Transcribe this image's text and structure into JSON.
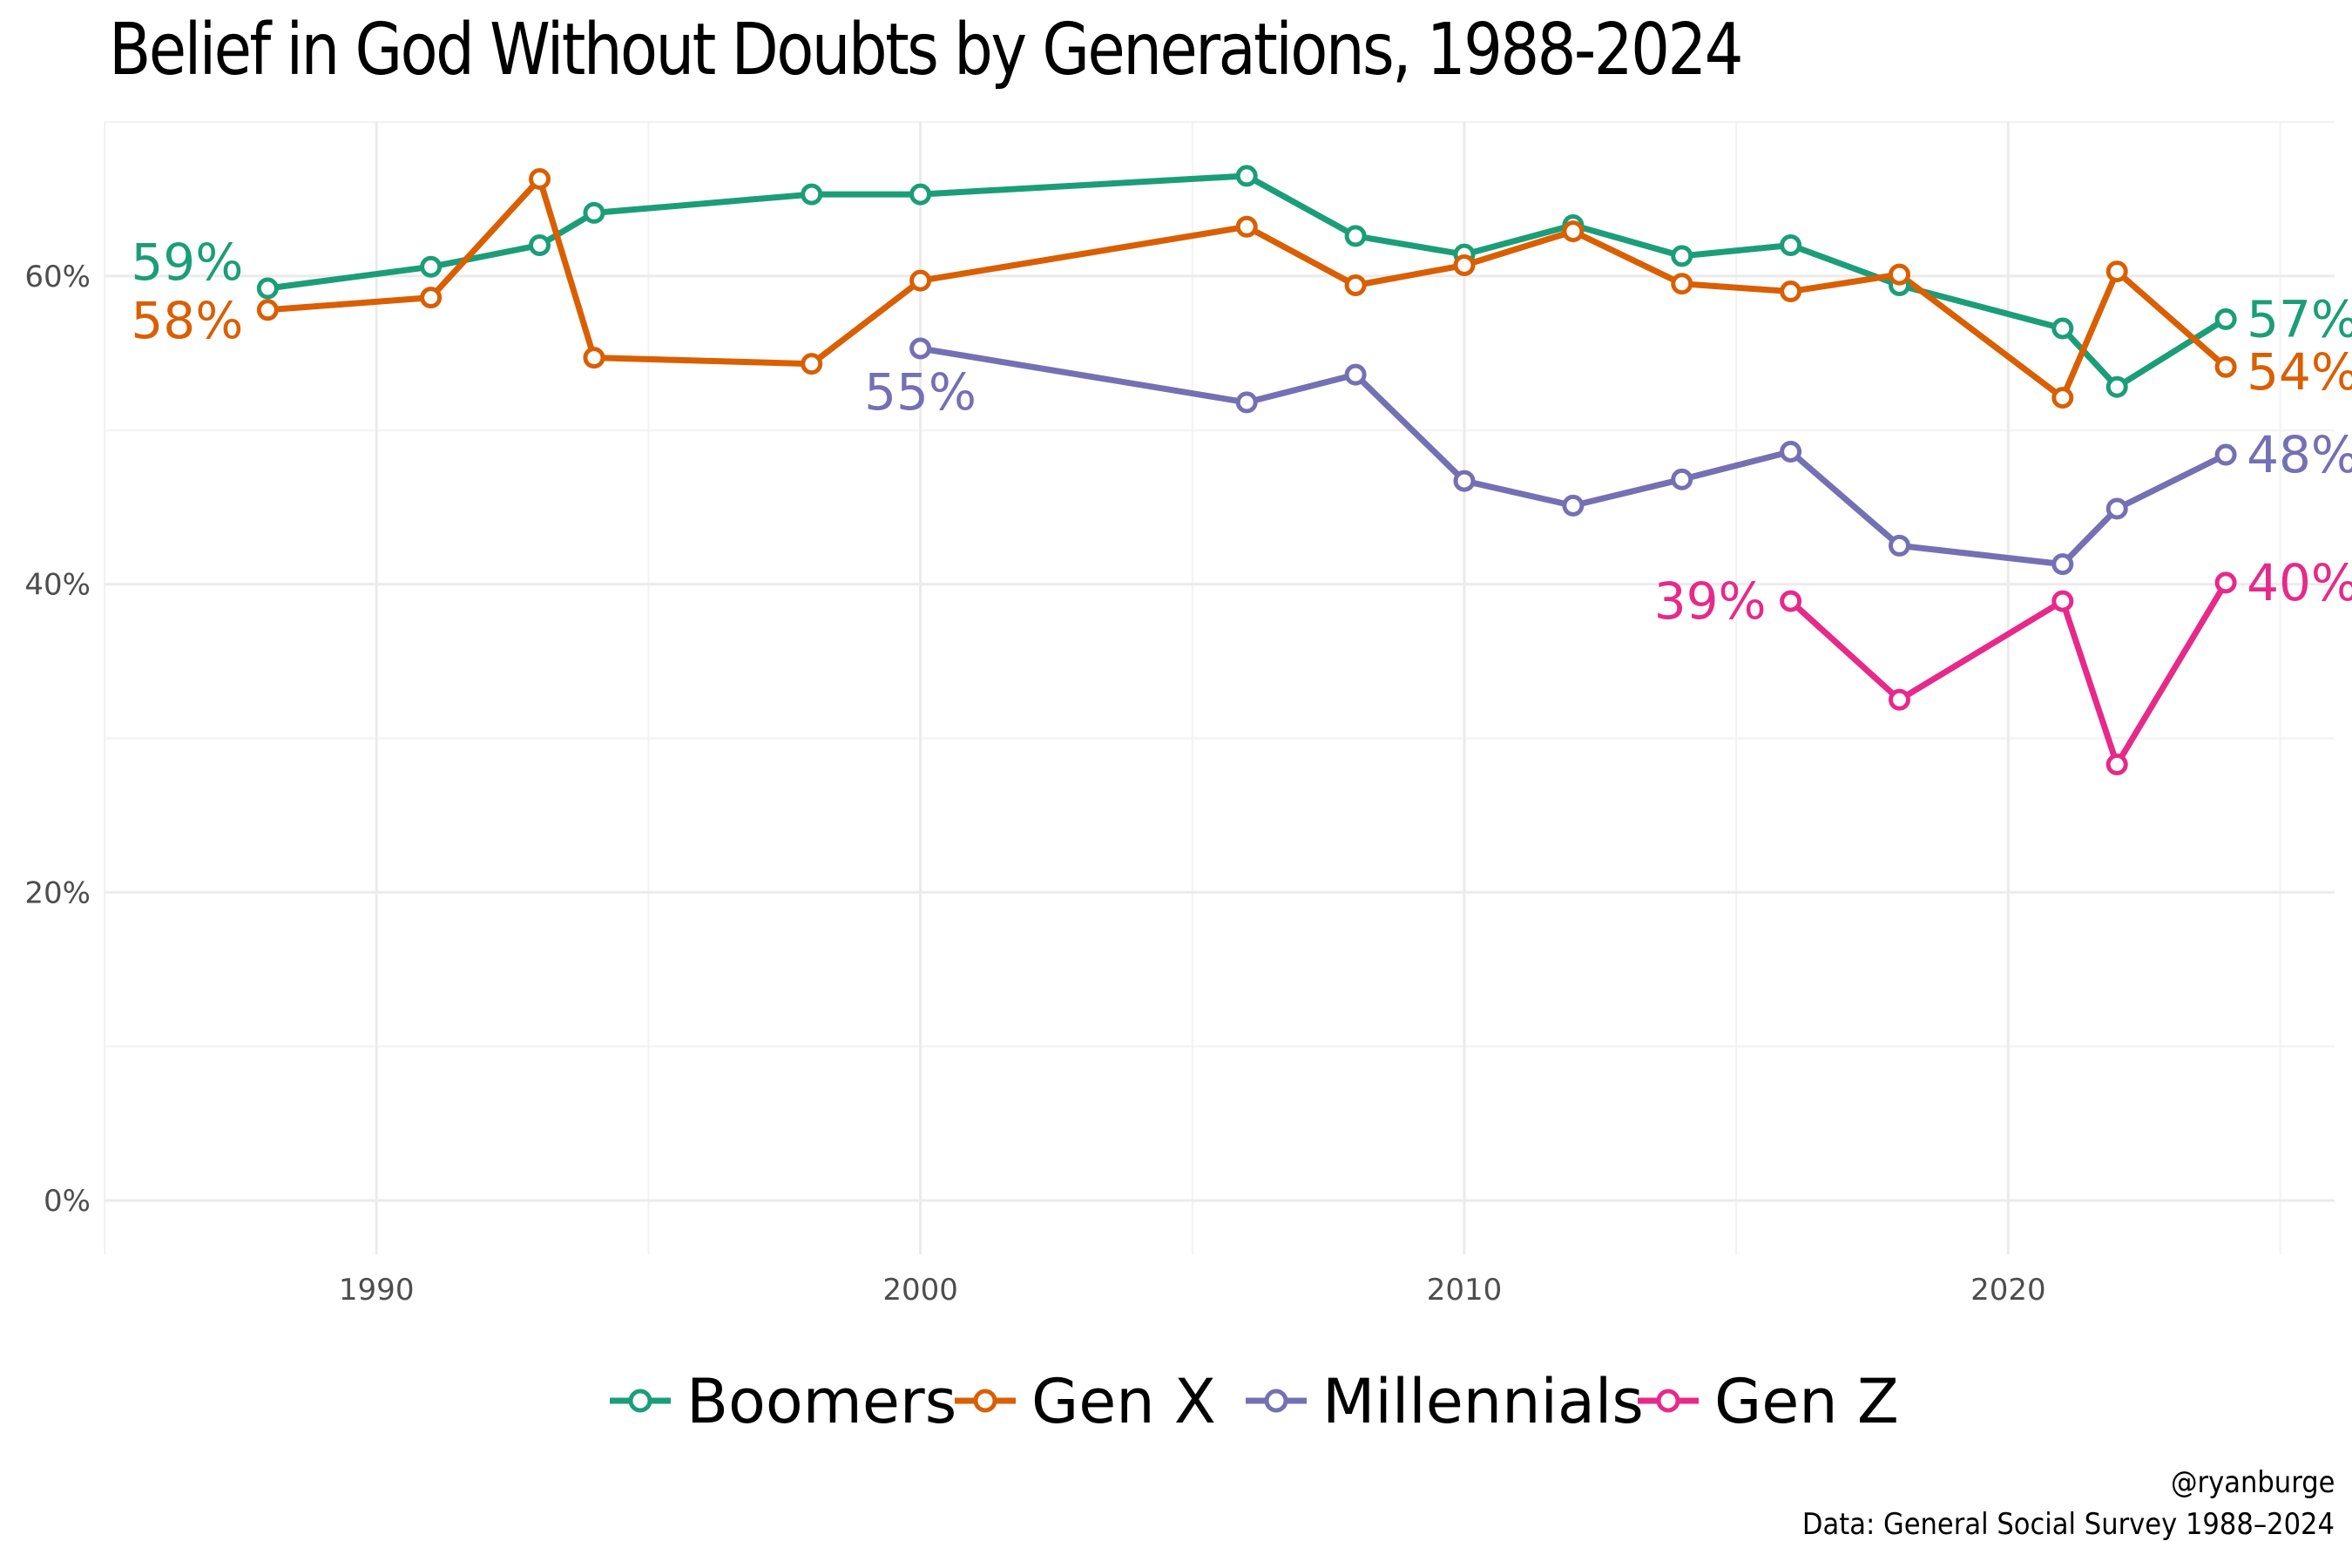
{
  "chart_data": {
    "type": "line",
    "title": "Belief in God Without Doubts by Generations, 1988-2024",
    "xlabel": "",
    "ylabel": "",
    "xlim": [
      1985,
      2026
    ],
    "ylim": [
      -3.5,
      70
    ],
    "x_ticks": [
      1990,
      2000,
      2010,
      2020
    ],
    "x_tick_labels": [
      "1990",
      "2000",
      "2010",
      "2020"
    ],
    "y_ticks": [
      0,
      20,
      40,
      60
    ],
    "y_tick_labels": [
      "0%",
      "20%",
      "40%",
      "60%"
    ],
    "grid": true,
    "legend_position": "bottom",
    "series": [
      {
        "name": "Boomers",
        "color": "#1b9e77",
        "x": [
          1988,
          1991,
          1993,
          1994,
          1998,
          2000,
          2006,
          2008,
          2010,
          2012,
          2014,
          2016,
          2018,
          2021,
          2022,
          2024
        ],
        "values": [
          59.2,
          60.6,
          62.0,
          64.1,
          65.3,
          65.3,
          66.5,
          62.6,
          61.4,
          63.3,
          61.3,
          62.0,
          59.4,
          56.6,
          52.8,
          57.2
        ]
      },
      {
        "name": "Gen X",
        "color": "#d95f02",
        "x": [
          1988,
          1991,
          1993,
          1994,
          1998,
          2000,
          2006,
          2008,
          2010,
          2012,
          2014,
          2016,
          2018,
          2021,
          2022,
          2024
        ],
        "values": [
          57.8,
          58.6,
          66.3,
          54.7,
          54.3,
          59.7,
          63.2,
          59.4,
          60.7,
          62.9,
          59.5,
          59.0,
          60.1,
          52.1,
          60.3,
          54.1
        ]
      },
      {
        "name": "Millennials",
        "color": "#7570b3",
        "x": [
          2000,
          2006,
          2008,
          2010,
          2012,
          2014,
          2016,
          2018,
          2021,
          2022,
          2024
        ],
        "values": [
          55.3,
          51.8,
          53.6,
          46.7,
          45.1,
          46.8,
          48.6,
          42.5,
          41.3,
          44.9,
          48.4
        ]
      },
      {
        "name": "Gen Z",
        "color": "#e7298a",
        "x": [
          2016,
          2018,
          2021,
          2022,
          2024
        ],
        "values": [
          38.9,
          32.5,
          38.9,
          28.3,
          40.1
        ]
      }
    ],
    "annotations": [
      {
        "series": "Boomers",
        "text": "59%",
        "x": 1988,
        "y": 59.2,
        "side": "left"
      },
      {
        "series": "Gen X",
        "text": "58%",
        "x": 1988,
        "y": 57.8,
        "side": "left"
      },
      {
        "series": "Millennials",
        "text": "55%",
        "x": 2000,
        "y": 55.3,
        "side": "below"
      },
      {
        "series": "Gen Z",
        "text": "39%",
        "x": 2016,
        "y": 38.9,
        "side": "left"
      },
      {
        "series": "Boomers",
        "text": "57%",
        "x": 2024,
        "y": 57.2,
        "side": "right"
      },
      {
        "series": "Gen X",
        "text": "54%",
        "x": 2024,
        "y": 54.1,
        "side": "right"
      },
      {
        "series": "Millennials",
        "text": "48%",
        "x": 2024,
        "y": 48.4,
        "side": "right"
      },
      {
        "series": "Gen Z",
        "text": "40%",
        "x": 2024,
        "y": 40.1,
        "side": "right"
      }
    ]
  },
  "caption": {
    "handle": "@ryanburge",
    "source": "Data: General Social Survey 1988–2024"
  }
}
